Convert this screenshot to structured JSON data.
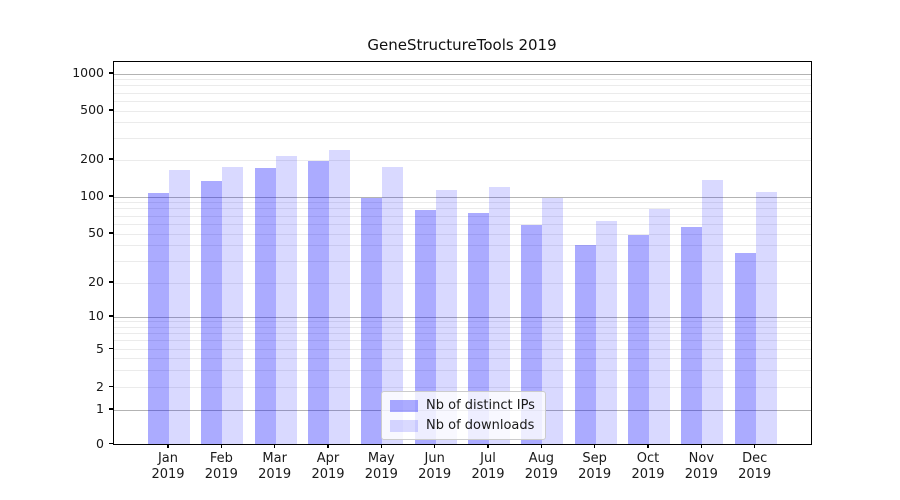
{
  "title": "GeneStructureTools 2019",
  "colors": {
    "bar_ips": "rgba(0,0,255,0.33)",
    "bar_downloads": "rgba(0,0,255,0.15)",
    "bar_ips_hex_on_white": "#aaaaff",
    "bar_downloads_hex_on_white": "#d9d9ff",
    "grid_major": "#b3b3b3",
    "grid_minor": "#ebebeb",
    "axis": "#000000"
  },
  "legend": {
    "entries": [
      {
        "label": "Nb of distinct IPs",
        "swatch": "ips-swatch"
      },
      {
        "label": "Nb of downloads",
        "swatch": "downloads-swatch"
      }
    ]
  },
  "chart_data": {
    "type": "bar",
    "title": "GeneStructureTools 2019",
    "categories": [
      "Jan 2019",
      "Feb 2019",
      "Mar 2019",
      "Apr 2019",
      "May 2019",
      "Jun 2019",
      "Jul 2019",
      "Aug 2019",
      "Sep 2019",
      "Oct 2019",
      "Nov 2019",
      "Dec 2019"
    ],
    "series": [
      {
        "name": "Nb of distinct IPs",
        "values": [
          107,
          133,
          170,
          193,
          97,
          77,
          73,
          59,
          40,
          49,
          57,
          35
        ]
      },
      {
        "name": "Nb of downloads",
        "values": [
          165,
          175,
          212,
          240,
          173,
          113,
          120,
          97,
          63,
          79,
          135,
          108
        ]
      }
    ],
    "xlabel": "",
    "ylabel": "",
    "yscale": "symlog",
    "ylim": [
      0,
      1250
    ],
    "ytick_values": [
      0,
      1,
      2,
      5,
      10,
      20,
      50,
      100,
      200,
      500,
      1000
    ],
    "ytick_labels": [
      "0",
      "1",
      "2",
      "5",
      "10",
      "20",
      "50",
      "100",
      "200",
      "500",
      "1000"
    ],
    "grid": true,
    "legend_position": "inside lower-center-left"
  }
}
